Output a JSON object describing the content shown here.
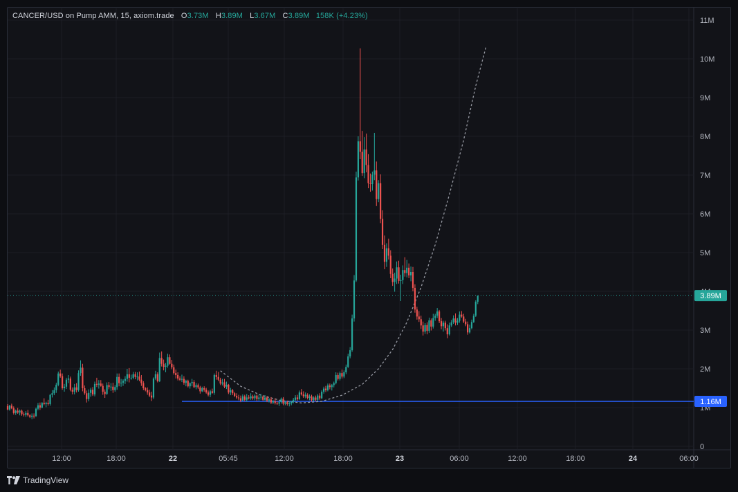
{
  "legend": {
    "symbol": "CANCER/USD on Pump AMM, 15, axiom.trade",
    "o_label": "O",
    "o_value": "3.73M",
    "h_label": "H",
    "h_value": "3.89M",
    "l_label": "L",
    "l_value": "3.67M",
    "c_label": "C",
    "c_value": "3.89M",
    "change": "158K (+4.23%)"
  },
  "footer": {
    "brand": "TradingView",
    "logo_icon": "tradingview-logo-icon"
  },
  "colors": {
    "up": "#26a69a",
    "down": "#ef5350",
    "price_line": "#26a69a",
    "support_line": "#2962ff",
    "curve": "#9598a1"
  },
  "chart_data": {
    "type": "candlestick",
    "interval": "15",
    "y_unit": "M",
    "ylim": [
      0,
      11.3
    ],
    "y_ticks": [
      "0",
      "1M",
      "2M",
      "3M",
      "4M",
      "5M",
      "6M",
      "7M",
      "8M",
      "9M",
      "10M",
      "11M"
    ],
    "x_ticks": [
      "12:00",
      "18:00",
      "22",
      "05:45",
      "12:00",
      "18:00",
      "23",
      "06:00",
      "12:00",
      "18:00",
      "24",
      "06:00"
    ],
    "x_tick_bold": [
      false,
      false,
      true,
      false,
      false,
      false,
      true,
      false,
      false,
      false,
      true,
      false
    ],
    "current_price": {
      "value": 3.89,
      "label": "3.89M"
    },
    "support_level": {
      "value": 1.16,
      "label": "1.16M",
      "start_candle": 86
    },
    "parabolic_curve": {
      "start_candle": 105,
      "bottom_candle": 145,
      "bottom_value": 1.12,
      "points": [
        [
          105,
          1.95
        ],
        [
          115,
          1.55
        ],
        [
          125,
          1.32
        ],
        [
          135,
          1.18
        ],
        [
          145,
          1.12
        ],
        [
          155,
          1.16
        ],
        [
          165,
          1.32
        ],
        [
          175,
          1.6
        ],
        [
          183,
          2.0
        ],
        [
          190,
          2.5
        ],
        [
          197,
          3.2
        ],
        [
          204,
          4.1
        ],
        [
          211,
          5.2
        ],
        [
          218,
          6.5
        ],
        [
          225,
          7.9
        ],
        [
          231,
          9.3
        ],
        [
          236,
          10.3
        ]
      ]
    },
    "candles": [
      [
        1.04,
        1.09,
        0.93,
        0.95
      ],
      [
        0.95,
        1.07,
        0.92,
        1.05
      ],
      [
        1.05,
        1.1,
        0.96,
        0.98
      ],
      [
        0.98,
        1.03,
        0.82,
        0.86
      ],
      [
        0.86,
        0.95,
        0.81,
        0.92
      ],
      [
        0.92,
        0.99,
        0.84,
        0.87
      ],
      [
        0.87,
        0.95,
        0.8,
        0.92
      ],
      [
        0.92,
        0.95,
        0.79,
        0.83
      ],
      [
        0.83,
        0.88,
        0.77,
        0.81
      ],
      [
        0.81,
        0.91,
        0.76,
        0.86
      ],
      [
        0.86,
        0.94,
        0.77,
        0.8
      ],
      [
        0.8,
        0.83,
        0.73,
        0.76
      ],
      [
        0.76,
        0.85,
        0.7,
        0.79
      ],
      [
        0.79,
        0.85,
        0.72,
        0.78
      ],
      [
        0.78,
        1.0,
        0.76,
        0.97
      ],
      [
        0.97,
        1.12,
        0.93,
        1.06
      ],
      [
        1.06,
        1.13,
        0.94,
        1.0
      ],
      [
        1.0,
        1.14,
        0.98,
        1.12
      ],
      [
        1.12,
        1.24,
        1.06,
        1.09
      ],
      [
        1.09,
        1.15,
        1.01,
        1.12
      ],
      [
        1.12,
        1.2,
        1.05,
        1.09
      ],
      [
        1.09,
        1.35,
        1.05,
        1.33
      ],
      [
        1.33,
        1.45,
        1.26,
        1.37
      ],
      [
        1.37,
        1.52,
        1.32,
        1.45
      ],
      [
        1.45,
        1.64,
        1.38,
        1.59
      ],
      [
        1.59,
        1.93,
        1.55,
        1.88
      ],
      [
        1.88,
        1.98,
        1.77,
        1.81
      ],
      [
        1.81,
        1.88,
        1.46,
        1.5
      ],
      [
        1.5,
        1.61,
        1.41,
        1.54
      ],
      [
        1.54,
        1.77,
        1.48,
        1.72
      ],
      [
        1.72,
        1.84,
        1.63,
        1.75
      ],
      [
        1.75,
        1.8,
        1.42,
        1.46
      ],
      [
        1.46,
        1.52,
        1.34,
        1.41
      ],
      [
        1.41,
        1.61,
        1.34,
        1.52
      ],
      [
        1.52,
        1.63,
        1.39,
        1.45
      ],
      [
        1.45,
        1.96,
        1.41,
        1.89
      ],
      [
        1.89,
        2.22,
        1.82,
        2.03
      ],
      [
        2.03,
        2.13,
        1.42,
        1.5
      ],
      [
        1.5,
        1.57,
        1.33,
        1.37
      ],
      [
        1.37,
        1.44,
        1.13,
        1.22
      ],
      [
        1.22,
        1.47,
        1.16,
        1.38
      ],
      [
        1.38,
        1.51,
        1.28,
        1.46
      ],
      [
        1.46,
        1.53,
        1.3,
        1.34
      ],
      [
        1.34,
        1.67,
        1.29,
        1.61
      ],
      [
        1.61,
        1.77,
        1.53,
        1.59
      ],
      [
        1.59,
        1.71,
        1.49,
        1.62
      ],
      [
        1.62,
        1.71,
        1.54,
        1.56
      ],
      [
        1.56,
        1.62,
        1.33,
        1.41
      ],
      [
        1.41,
        1.47,
        1.25,
        1.35
      ],
      [
        1.35,
        1.65,
        1.33,
        1.58
      ],
      [
        1.58,
        1.66,
        1.47,
        1.53
      ],
      [
        1.53,
        1.63,
        1.43,
        1.54
      ],
      [
        1.54,
        1.64,
        1.38,
        1.45
      ],
      [
        1.45,
        1.58,
        1.41,
        1.53
      ],
      [
        1.53,
        1.88,
        1.46,
        1.79
      ],
      [
        1.79,
        1.88,
        1.55,
        1.63
      ],
      [
        1.63,
        1.74,
        1.54,
        1.64
      ],
      [
        1.64,
        1.73,
        1.56,
        1.69
      ],
      [
        1.69,
        1.81,
        1.61,
        1.74
      ],
      [
        1.74,
        2.0,
        1.67,
        1.86
      ],
      [
        1.86,
        2.02,
        1.65,
        1.77
      ],
      [
        1.77,
        1.85,
        1.72,
        1.77
      ],
      [
        1.77,
        1.92,
        1.73,
        1.86
      ],
      [
        1.86,
        1.92,
        1.73,
        1.79
      ],
      [
        1.79,
        1.91,
        1.7,
        1.8
      ],
      [
        1.8,
        1.93,
        1.68,
        1.72
      ],
      [
        1.72,
        1.84,
        1.56,
        1.63
      ],
      [
        1.63,
        1.68,
        1.45,
        1.5
      ],
      [
        1.5,
        1.53,
        1.42,
        1.45
      ],
      [
        1.45,
        1.52,
        1.33,
        1.39
      ],
      [
        1.39,
        1.46,
        1.27,
        1.31
      ],
      [
        1.31,
        1.41,
        1.17,
        1.26
      ],
      [
        1.26,
        1.78,
        1.22,
        1.75
      ],
      [
        1.75,
        1.95,
        1.71,
        1.86
      ],
      [
        1.86,
        1.91,
        1.65,
        1.68
      ],
      [
        1.68,
        2.42,
        1.66,
        2.28
      ],
      [
        2.28,
        2.45,
        2.06,
        2.13
      ],
      [
        2.13,
        2.24,
        1.96,
        2.05
      ],
      [
        2.05,
        2.15,
        1.91,
        2.08
      ],
      [
        2.08,
        2.39,
        2.03,
        2.3
      ],
      [
        2.3,
        2.37,
        2.11,
        2.13
      ],
      [
        2.13,
        2.23,
        1.99,
        2.04
      ],
      [
        2.04,
        2.11,
        1.85,
        1.89
      ],
      [
        1.89,
        1.98,
        1.75,
        1.84
      ],
      [
        1.84,
        1.91,
        1.7,
        1.75
      ],
      [
        1.75,
        1.81,
        1.69,
        1.72
      ],
      [
        1.72,
        1.85,
        1.66,
        1.74
      ],
      [
        1.74,
        1.81,
        1.59,
        1.64
      ],
      [
        1.64,
        1.72,
        1.55,
        1.69
      ],
      [
        1.69,
        1.72,
        1.52,
        1.55
      ],
      [
        1.55,
        1.65,
        1.49,
        1.63
      ],
      [
        1.63,
        1.74,
        1.55,
        1.66
      ],
      [
        1.66,
        1.71,
        1.5,
        1.53
      ],
      [
        1.53,
        1.63,
        1.47,
        1.58
      ],
      [
        1.58,
        1.62,
        1.48,
        1.52
      ],
      [
        1.52,
        1.56,
        1.36,
        1.42
      ],
      [
        1.42,
        1.54,
        1.4,
        1.5
      ],
      [
        1.5,
        1.55,
        1.41,
        1.46
      ],
      [
        1.46,
        1.51,
        1.36,
        1.39
      ],
      [
        1.39,
        1.44,
        1.29,
        1.33
      ],
      [
        1.33,
        1.46,
        1.27,
        1.42
      ],
      [
        1.42,
        1.49,
        1.36,
        1.38
      ],
      [
        1.38,
        1.88,
        1.33,
        1.84
      ],
      [
        1.84,
        1.95,
        1.72,
        1.79
      ],
      [
        1.79,
        1.92,
        1.68,
        1.72
      ],
      [
        1.72,
        1.77,
        1.58,
        1.62
      ],
      [
        1.62,
        1.74,
        1.57,
        1.65
      ],
      [
        1.65,
        1.74,
        1.5,
        1.54
      ],
      [
        1.54,
        1.67,
        1.48,
        1.59
      ],
      [
        1.59,
        1.61,
        1.35,
        1.39
      ],
      [
        1.39,
        1.51,
        1.32,
        1.45
      ],
      [
        1.45,
        1.48,
        1.32,
        1.37
      ],
      [
        1.37,
        1.4,
        1.27,
        1.3
      ],
      [
        1.3,
        1.37,
        1.22,
        1.26
      ],
      [
        1.26,
        1.33,
        1.19,
        1.24
      ],
      [
        1.24,
        1.31,
        1.14,
        1.18
      ],
      [
        1.18,
        1.34,
        1.17,
        1.29
      ],
      [
        1.29,
        1.33,
        1.16,
        1.2
      ],
      [
        1.2,
        1.35,
        1.15,
        1.26
      ],
      [
        1.26,
        1.32,
        1.21,
        1.24
      ],
      [
        1.24,
        1.37,
        1.2,
        1.29
      ],
      [
        1.29,
        1.33,
        1.2,
        1.24
      ],
      [
        1.24,
        1.34,
        1.19,
        1.31
      ],
      [
        1.31,
        1.34,
        1.17,
        1.22
      ],
      [
        1.22,
        1.33,
        1.18,
        1.26
      ],
      [
        1.26,
        1.35,
        1.2,
        1.28
      ],
      [
        1.28,
        1.31,
        1.17,
        1.2
      ],
      [
        1.2,
        1.32,
        1.16,
        1.26
      ],
      [
        1.26,
        1.3,
        1.14,
        1.18
      ],
      [
        1.18,
        1.25,
        1.13,
        1.21
      ],
      [
        1.21,
        1.27,
        1.09,
        1.13
      ],
      [
        1.13,
        1.2,
        1.09,
        1.17
      ],
      [
        1.17,
        1.24,
        1.08,
        1.12
      ],
      [
        1.12,
        1.17,
        1.07,
        1.1
      ],
      [
        1.1,
        1.18,
        1.04,
        1.14
      ],
      [
        1.14,
        1.26,
        1.1,
        1.23
      ],
      [
        1.23,
        1.27,
        1.06,
        1.1
      ],
      [
        1.1,
        1.17,
        1.06,
        1.14
      ],
      [
        1.14,
        1.18,
        1.05,
        1.09
      ],
      [
        1.09,
        1.15,
        1.03,
        1.11
      ],
      [
        1.11,
        1.17,
        1.06,
        1.15
      ],
      [
        1.15,
        1.25,
        1.11,
        1.2
      ],
      [
        1.2,
        1.32,
        1.16,
        1.26
      ],
      [
        1.26,
        1.33,
        1.18,
        1.22
      ],
      [
        1.22,
        1.44,
        1.2,
        1.39
      ],
      [
        1.39,
        1.48,
        1.31,
        1.34
      ],
      [
        1.34,
        1.42,
        1.25,
        1.29
      ],
      [
        1.29,
        1.39,
        1.24,
        1.33
      ],
      [
        1.33,
        1.37,
        1.21,
        1.25
      ],
      [
        1.25,
        1.34,
        1.19,
        1.29
      ],
      [
        1.29,
        1.33,
        1.15,
        1.19
      ],
      [
        1.19,
        1.29,
        1.16,
        1.26
      ],
      [
        1.26,
        1.31,
        1.16,
        1.2
      ],
      [
        1.2,
        1.35,
        1.17,
        1.31
      ],
      [
        1.31,
        1.37,
        1.2,
        1.24
      ],
      [
        1.24,
        1.45,
        1.22,
        1.41
      ],
      [
        1.41,
        1.54,
        1.36,
        1.49
      ],
      [
        1.49,
        1.56,
        1.4,
        1.45
      ],
      [
        1.45,
        1.62,
        1.42,
        1.57
      ],
      [
        1.57,
        1.62,
        1.47,
        1.53
      ],
      [
        1.53,
        1.61,
        1.44,
        1.58
      ],
      [
        1.58,
        1.67,
        1.52,
        1.63
      ],
      [
        1.63,
        1.91,
        1.6,
        1.84
      ],
      [
        1.84,
        1.9,
        1.7,
        1.74
      ],
      [
        1.74,
        1.93,
        1.7,
        1.89
      ],
      [
        1.89,
        1.98,
        1.75,
        1.8
      ],
      [
        1.8,
        1.96,
        1.76,
        1.91
      ],
      [
        1.91,
        2.11,
        1.86,
        2.05
      ],
      [
        2.05,
        2.39,
        2.02,
        2.32
      ],
      [
        2.32,
        2.56,
        2.27,
        2.48
      ],
      [
        2.48,
        3.4,
        2.44,
        3.3
      ],
      [
        3.3,
        4.42,
        3.22,
        4.28
      ],
      [
        4.28,
        7.09,
        4.24,
        6.94
      ],
      [
        6.94,
        8.0,
        6.86,
        7.87
      ],
      [
        7.87,
        10.27,
        7.41,
        7.6
      ],
      [
        7.6,
        8.14,
        6.98,
        7.05
      ],
      [
        7.05,
        7.98,
        6.92,
        7.66
      ],
      [
        7.66,
        8.07,
        7.07,
        7.26
      ],
      [
        7.26,
        7.54,
        6.66,
        6.79
      ],
      [
        6.79,
        7.04,
        6.57,
        6.77
      ],
      [
        6.77,
        7.09,
        6.6,
        7.01
      ],
      [
        7.01,
        8.09,
        6.87,
        7.12
      ],
      [
        7.12,
        7.35,
        6.2,
        6.38
      ],
      [
        6.38,
        6.87,
        6.3,
        6.79
      ],
      [
        6.79,
        7.02,
        5.76,
        5.87
      ],
      [
        5.87,
        6.09,
        5.09,
        5.2
      ],
      [
        5.2,
        5.44,
        4.57,
        4.76
      ],
      [
        4.76,
        5.24,
        4.63,
        5.11
      ],
      [
        5.11,
        5.36,
        4.82,
        4.92
      ],
      [
        4.92,
        5.06,
        4.34,
        4.45
      ],
      [
        4.45,
        4.59,
        4.14,
        4.24
      ],
      [
        4.24,
        4.48,
        3.99,
        4.33
      ],
      [
        4.33,
        4.77,
        4.19,
        4.62
      ],
      [
        4.62,
        4.79,
        4.2,
        4.27
      ],
      [
        4.27,
        4.43,
        3.75,
        4.29
      ],
      [
        4.29,
        4.67,
        4.19,
        4.55
      ],
      [
        4.55,
        4.88,
        4.38,
        4.47
      ],
      [
        4.47,
        4.81,
        4.36,
        4.61
      ],
      [
        4.61,
        4.72,
        4.34,
        4.41
      ],
      [
        4.41,
        4.64,
        4.26,
        4.5
      ],
      [
        4.5,
        4.63,
        4.0,
        4.09
      ],
      [
        4.09,
        4.18,
        3.45,
        3.53
      ],
      [
        3.53,
        3.6,
        3.27,
        3.35
      ],
      [
        3.35,
        3.49,
        3.21,
        3.28
      ],
      [
        3.28,
        3.37,
        3.03,
        3.12
      ],
      [
        3.12,
        3.22,
        2.86,
        2.96
      ],
      [
        2.96,
        3.18,
        2.9,
        3.13
      ],
      [
        3.13,
        3.2,
        2.89,
        2.98
      ],
      [
        2.98,
        3.32,
        2.93,
        3.25
      ],
      [
        3.25,
        3.3,
        2.99,
        3.09
      ],
      [
        3.09,
        3.42,
        3.04,
        3.31
      ],
      [
        3.31,
        3.42,
        3.24,
        3.37
      ],
      [
        3.37,
        3.57,
        3.31,
        3.48
      ],
      [
        3.48,
        3.52,
        3.18,
        3.23
      ],
      [
        3.23,
        3.31,
        3.02,
        3.1
      ],
      [
        3.1,
        3.24,
        2.96,
        3.19
      ],
      [
        3.19,
        3.24,
        2.99,
        3.05
      ],
      [
        3.05,
        3.15,
        2.79,
        2.89
      ],
      [
        2.89,
        3.19,
        2.86,
        3.12
      ],
      [
        3.12,
        3.26,
        3.08,
        3.2
      ],
      [
        3.2,
        3.38,
        3.16,
        3.3
      ],
      [
        3.3,
        3.43,
        3.12,
        3.19
      ],
      [
        3.19,
        3.31,
        3.13,
        3.24
      ],
      [
        3.24,
        3.48,
        3.19,
        3.4
      ],
      [
        3.4,
        3.49,
        3.32,
        3.35
      ],
      [
        3.35,
        3.42,
        3.18,
        3.22
      ],
      [
        3.22,
        3.29,
        3.1,
        3.15
      ],
      [
        3.15,
        3.22,
        2.88,
        2.94
      ],
      [
        2.94,
        3.14,
        2.91,
        3.05
      ],
      [
        3.05,
        3.27,
        3.02,
        3.21
      ],
      [
        3.21,
        3.42,
        3.18,
        3.37
      ],
      [
        3.37,
        3.77,
        3.34,
        3.73
      ],
      [
        3.73,
        3.89,
        3.67,
        3.89
      ]
    ]
  }
}
